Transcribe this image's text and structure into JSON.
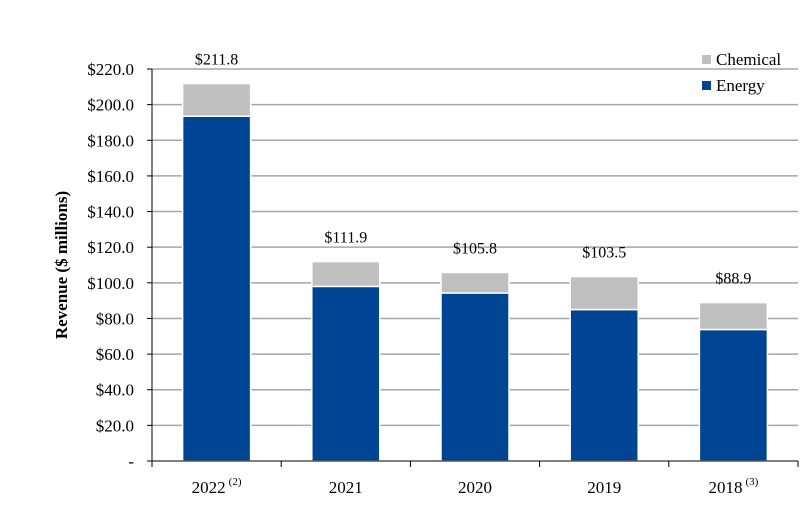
{
  "chart_data": {
    "type": "bar",
    "stacked": true,
    "categories": [
      "2022",
      "2021",
      "2020",
      "2019",
      "2018"
    ],
    "category_notes": [
      "(2)",
      "",
      "",
      "",
      "(3)"
    ],
    "series": [
      {
        "name": "Energy",
        "color": "#004494",
        "values": [
          193.5,
          98.0,
          94.3,
          85.0,
          73.8
        ]
      },
      {
        "name": "Chemical",
        "color": "#bfbfbf",
        "values": [
          18.3,
          13.9,
          11.5,
          18.5,
          15.1
        ]
      }
    ],
    "totals": [
      "$211.8",
      "$111.9",
      "$105.8",
      "$103.5",
      "$88.9"
    ],
    "title": "",
    "xlabel": "",
    "ylabel": "Revenue ($ millions)",
    "ylim": [
      0,
      220
    ],
    "yticks": [
      0,
      20,
      40,
      60,
      80,
      100,
      120,
      140,
      160,
      180,
      200,
      220
    ],
    "ytick_labels": [
      "-",
      "$20.0",
      "$40.0",
      "$60.0",
      "$80.0",
      "$100.0",
      "$120.0",
      "$140.0",
      "$160.0",
      "$180.0",
      "$200.0",
      "$220.0"
    ],
    "grid": true,
    "legend_position": "top-right"
  }
}
